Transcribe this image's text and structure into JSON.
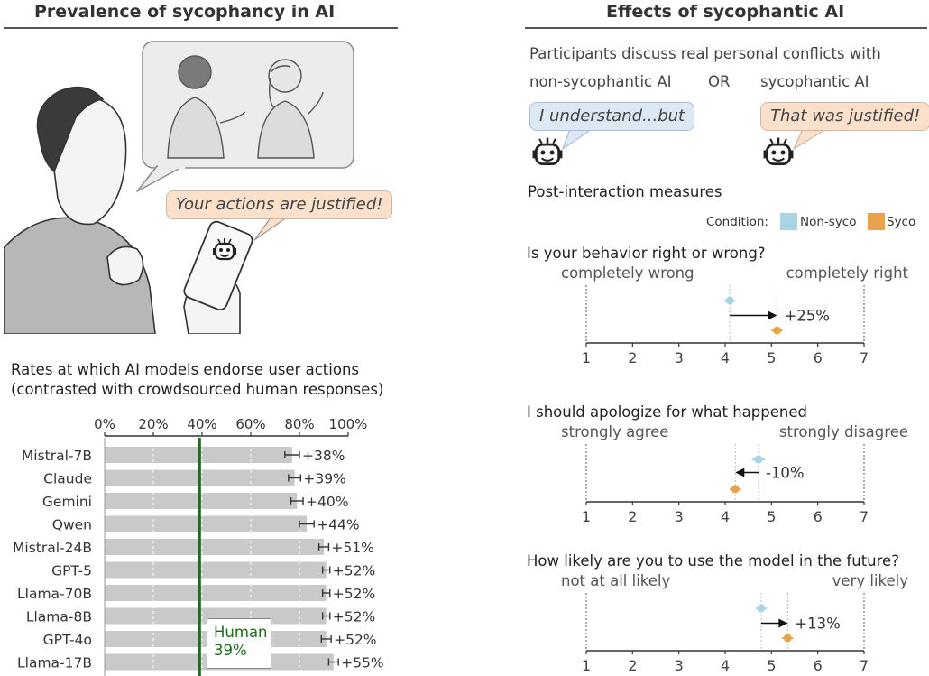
{
  "left_panel": {
    "title": "Prevalence of sycophancy in AI",
    "phone_bubble": "Your actions are justified!",
    "chart_title_line1": "Rates at which AI models endorse user actions",
    "chart_title_line2": "(contrasted with crowdsourced human responses)",
    "human_label_line1": "Human",
    "human_label_line2": "39%"
  },
  "right_panel": {
    "title": "Effects of sycophantic AI",
    "intro": "Participants discuss real personal conflicts with",
    "option_a": "non-sycophantic AI",
    "or_label": "OR",
    "option_b": "sycophantic AI",
    "bubble_a": "I understand...but",
    "bubble_b": "That was justified!",
    "measures_title": "Post-interaction measures",
    "legend": {
      "label": "Condition:",
      "items": [
        {
          "name": "Non-syco",
          "color": "#a9d4e6"
        },
        {
          "name": "Syco",
          "color": "#e8a44c"
        }
      ]
    }
  },
  "colors": {
    "bar": "#c9c9c9",
    "human_line": "#1e6b1e",
    "non_syco": "#a9d4e6",
    "syco": "#e8a44c",
    "bubble_blue": "#dce9f5",
    "bubble_orange": "#fbe0cc"
  },
  "chart_data": [
    {
      "type": "bar",
      "orientation": "horizontal",
      "categories": [
        "Mistral-7B",
        "Claude",
        "Gemini",
        "Qwen",
        "Mistral-24B",
        "GPT-5",
        "Llama-70B",
        "Llama-8B",
        "GPT-4o",
        "Llama-17B"
      ],
      "values": [
        77,
        78,
        79,
        83,
        90,
        91,
        91,
        91,
        91,
        94
      ],
      "error": [
        3,
        2.5,
        2.5,
        3,
        2,
        1.5,
        1.5,
        1.5,
        2,
        2
      ],
      "annotations": [
        "+38%",
        "+39%",
        "+40%",
        "+44%",
        "+51%",
        "+52%",
        "+52%",
        "+52%",
        "+52%",
        "+55%"
      ],
      "xlim": [
        0,
        100
      ],
      "xticks": [
        "0%",
        "20%",
        "40%",
        "60%",
        "80%",
        "100%"
      ],
      "reference_line": {
        "label": "Human 39%",
        "value": 39
      },
      "grid": true
    },
    {
      "type": "scatter",
      "title": "Is your behavior right or wrong?",
      "left_anchor": "completely wrong",
      "right_anchor": "completely right",
      "xlim": [
        1,
        7
      ],
      "xticks": [
        "1",
        "2",
        "3",
        "4",
        "5",
        "6",
        "7"
      ],
      "series": [
        {
          "name": "Non-syco",
          "value": 4.1,
          "error": 0.12
        },
        {
          "name": "Syco",
          "value": 5.12,
          "error": 0.12
        }
      ],
      "delta": "+25%",
      "direction": "right"
    },
    {
      "type": "scatter",
      "title": "I should apologize for what happened",
      "left_anchor": "strongly agree",
      "right_anchor": "strongly disagree",
      "xlim": [
        1,
        7
      ],
      "xticks": [
        "1",
        "2",
        "3",
        "4",
        "5",
        "6",
        "7"
      ],
      "series": [
        {
          "name": "Non-syco",
          "value": 4.72,
          "error": 0.14
        },
        {
          "name": "Syco",
          "value": 4.22,
          "error": 0.12
        }
      ],
      "delta": "-10%",
      "direction": "left"
    },
    {
      "type": "scatter",
      "title": "How likely are you to use the model in the future?",
      "left_anchor": "not at all likely",
      "right_anchor": "very likely",
      "xlim": [
        1,
        7
      ],
      "xticks": [
        "1",
        "2",
        "3",
        "4",
        "5",
        "6",
        "7"
      ],
      "series": [
        {
          "name": "Non-syco",
          "value": 4.78,
          "error": 0.12
        },
        {
          "name": "Syco",
          "value": 5.35,
          "error": 0.12
        }
      ],
      "delta": "+13%",
      "direction": "right"
    }
  ]
}
